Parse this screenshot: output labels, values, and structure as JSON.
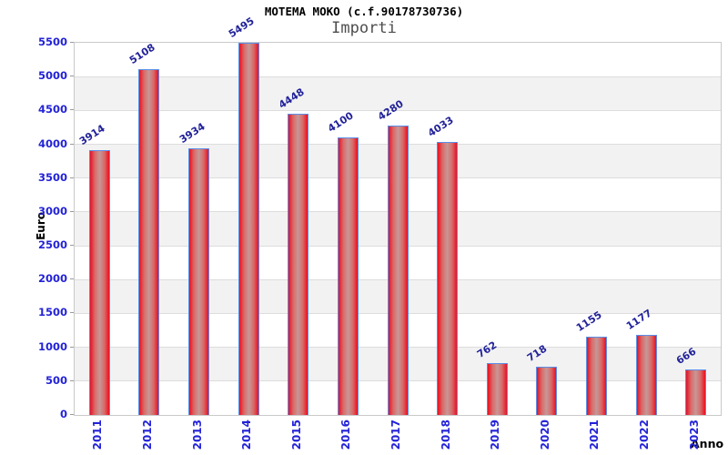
{
  "chart": {
    "title": "MOTEMA MOKO (c.f.90178730736)",
    "subtitle": "Importi",
    "y_axis_title": "Euro",
    "x_axis_title": "Anno"
  },
  "chart_data": {
    "type": "bar",
    "title": "MOTEMA MOKO (c.f.90178730736)",
    "subtitle": "Importi",
    "xlabel": "Anno",
    "ylabel": "Euro",
    "categories": [
      "2011",
      "2012",
      "2013",
      "2014",
      "2015",
      "2016",
      "2017",
      "2018",
      "2019",
      "2020",
      "2021",
      "2022",
      "2023"
    ],
    "values": [
      3914,
      5108,
      3934,
      5495,
      4448,
      4100,
      4280,
      4033,
      762,
      718,
      1155,
      1177,
      666
    ],
    "ylim": [
      0,
      5500
    ],
    "ytick_interval": 500,
    "grid": "horizontal-bands",
    "legend": null,
    "colors": {
      "bar_edge": "#e90f22",
      "bar_center": "#c79797",
      "bar_border": "#5a8fe8",
      "value_label": "#22229a",
      "tick_label": "#2323d7",
      "band_alt": "#f2f2f2",
      "plot_border": "#c9c9c9",
      "title": "#000000",
      "subtitle": "#4d4d4d"
    }
  }
}
